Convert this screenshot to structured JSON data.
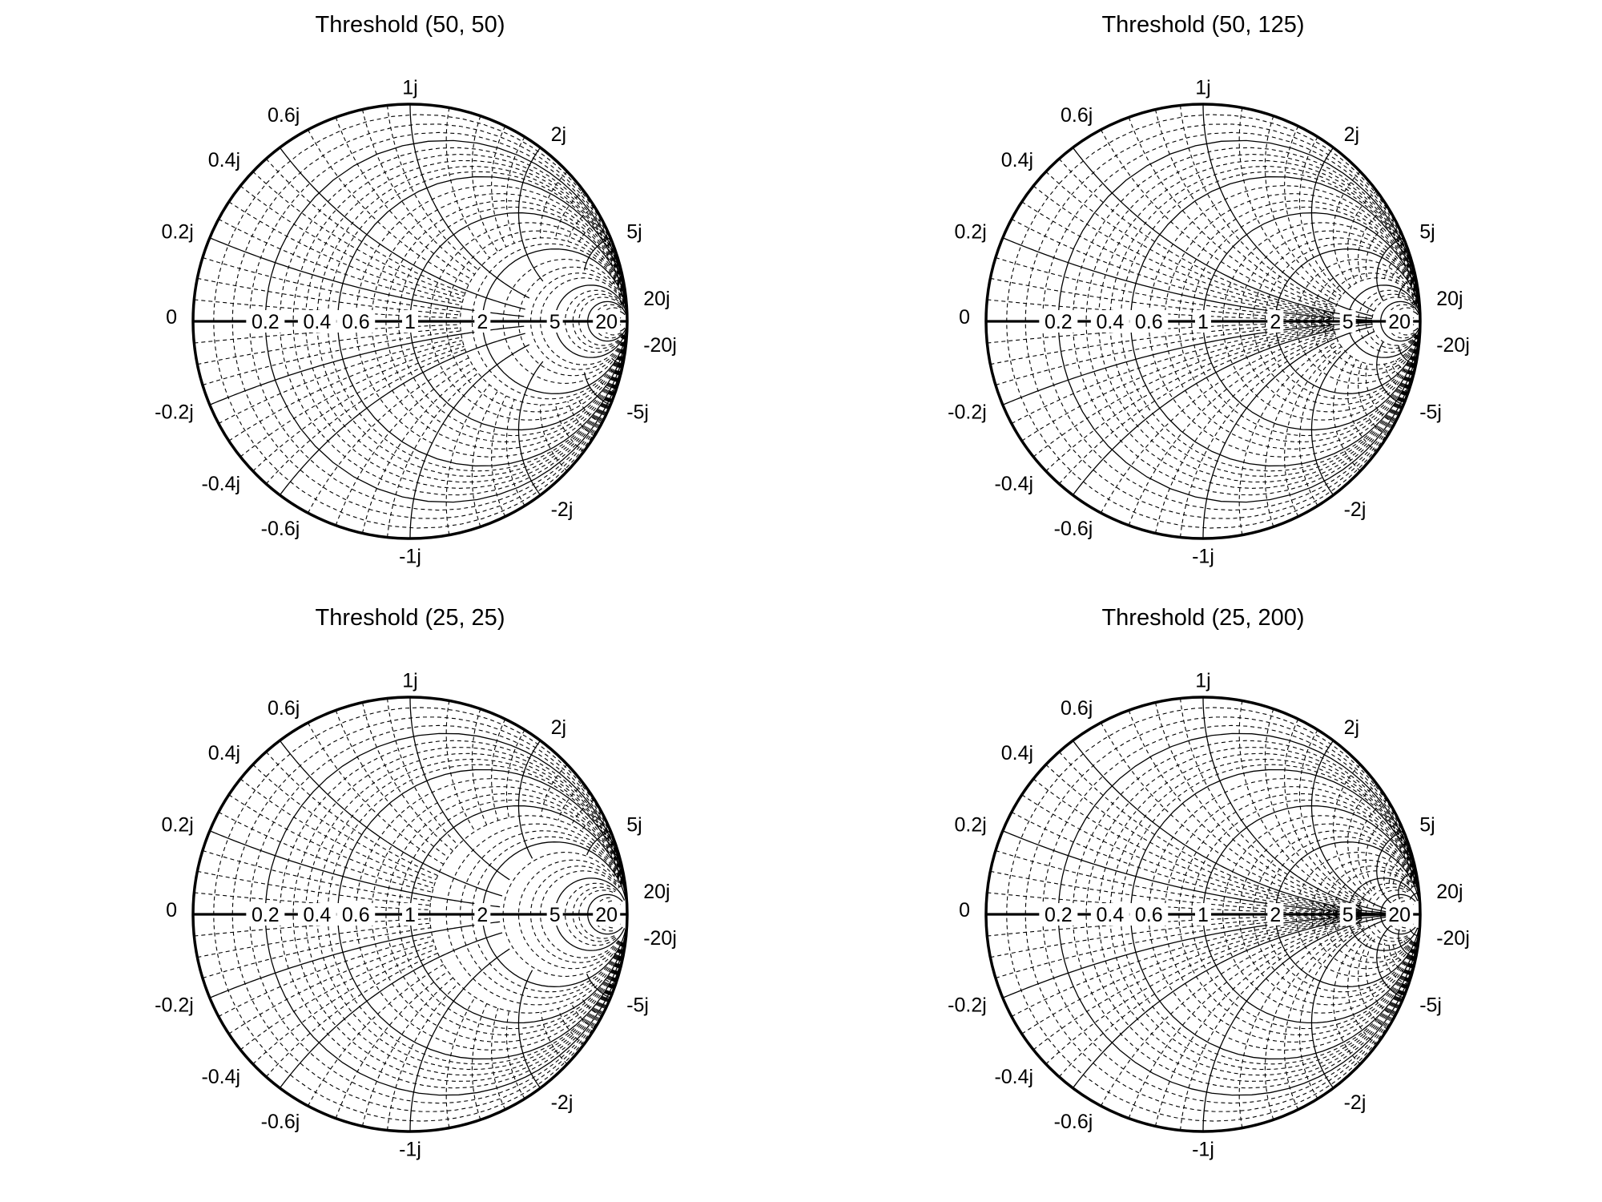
{
  "chart_data": [
    {
      "type": "smith",
      "title": "Threshold (50, 50)",
      "threshold": [
        50,
        50
      ],
      "real_tick_labels": [
        "0.2",
        "0.4",
        "0.6",
        "1",
        "2",
        "5",
        "20"
      ],
      "imag_tick_labels": [
        "0",
        "0.2j",
        "0.4j",
        "0.6j",
        "1j",
        "2j",
        "5j",
        "20j",
        "-20j",
        "-5j",
        "-2j",
        "-1j",
        "-0.6j",
        "-0.4j",
        "-0.2j"
      ]
    },
    {
      "type": "smith",
      "title": "Threshold (50, 125)",
      "threshold": [
        50,
        125
      ],
      "real_tick_labels": [
        "0.2",
        "0.4",
        "0.6",
        "1",
        "2",
        "5",
        "20"
      ],
      "imag_tick_labels": [
        "0",
        "0.2j",
        "0.4j",
        "0.6j",
        "1j",
        "2j",
        "5j",
        "20j",
        "-20j",
        "-5j",
        "-2j",
        "-1j",
        "-0.6j",
        "-0.4j",
        "-0.2j"
      ]
    },
    {
      "type": "smith",
      "title": "Threshold (25, 25)",
      "threshold": [
        25,
        25
      ],
      "real_tick_labels": [
        "0.2",
        "0.4",
        "0.6",
        "1",
        "2",
        "5",
        "20"
      ],
      "imag_tick_labels": [
        "0",
        "0.2j",
        "0.4j",
        "0.6j",
        "1j",
        "2j",
        "5j",
        "20j",
        "-20j",
        "-5j",
        "-2j",
        "-1j",
        "-0.6j",
        "-0.4j",
        "-0.2j"
      ]
    },
    {
      "type": "smith",
      "title": "Threshold (25, 200)",
      "threshold": [
        25,
        200
      ],
      "real_tick_labels": [
        "0.2",
        "0.4",
        "0.6",
        "1",
        "2",
        "5",
        "20"
      ],
      "imag_tick_labels": [
        "0",
        "0.2j",
        "0.4j",
        "0.6j",
        "1j",
        "2j",
        "5j",
        "20j",
        "-20j",
        "-5j",
        "-2j",
        "-1j",
        "-0.6j",
        "-0.4j",
        "-0.2j"
      ]
    }
  ]
}
